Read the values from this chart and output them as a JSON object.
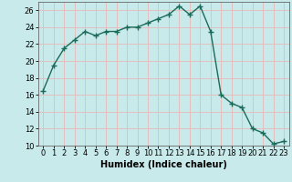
{
  "x": [
    0,
    1,
    2,
    3,
    4,
    5,
    6,
    7,
    8,
    9,
    10,
    11,
    12,
    13,
    14,
    15,
    16,
    17,
    18,
    19,
    20,
    21,
    22,
    23
  ],
  "y": [
    16.5,
    19.5,
    21.5,
    22.5,
    23.5,
    23.0,
    23.5,
    23.5,
    24.0,
    24.0,
    24.5,
    25.0,
    25.5,
    26.5,
    25.5,
    26.5,
    23.5,
    16.0,
    15.0,
    14.5,
    12.0,
    11.5,
    10.2,
    10.5
  ],
  "line_color": "#1a6b5a",
  "marker": "+",
  "marker_size": 4,
  "marker_linewidth": 1.0,
  "line_width": 1.0,
  "bg_color": "#c8eaea",
  "grid_color": "#e8b8b8",
  "xlabel": "Humidex (Indice chaleur)",
  "ylim": [
    10,
    27
  ],
  "xlim": [
    -0.5,
    23.5
  ],
  "yticks": [
    10,
    12,
    14,
    16,
    18,
    20,
    22,
    24,
    26
  ],
  "xticks": [
    0,
    1,
    2,
    3,
    4,
    5,
    6,
    7,
    8,
    9,
    10,
    11,
    12,
    13,
    14,
    15,
    16,
    17,
    18,
    19,
    20,
    21,
    22,
    23
  ],
  "xlabel_fontsize": 7,
  "tick_fontsize": 6
}
